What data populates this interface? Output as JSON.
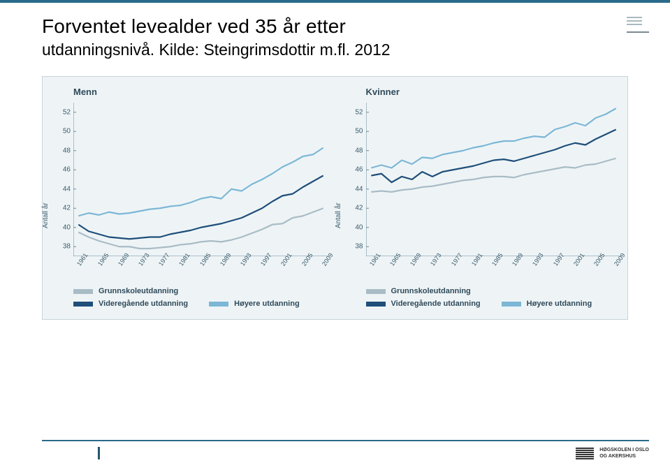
{
  "page": {
    "title_line1": "Forventet levealder ved 35 år etter",
    "title_line2_strong": "utdanningsnivå.",
    "title_line2_rest": " Kilde: Steingrimsdottir m.fl. 2012",
    "background": "#ffffff",
    "rule_color": "#2a6a8a"
  },
  "chart_common": {
    "type": "line",
    "background_color": "#eef4f6",
    "axis_color": "#6a8a9a",
    "grid": false,
    "ylim": [
      37,
      53
    ],
    "yticks": [
      38,
      40,
      42,
      44,
      46,
      48,
      50,
      52
    ],
    "xlim": [
      1960,
      2010
    ],
    "xticks": [
      1961,
      1965,
      1969,
      1973,
      1977,
      1981,
      1985,
      1989,
      1993,
      1997,
      2001,
      2005,
      2009
    ],
    "y_axis_label": "Antall år",
    "line_width": 2.2,
    "label_fontsize": 10,
    "title_fontsize": 13,
    "series_colors": {
      "grunnskole": "#a9bcc6",
      "videregaende": "#1f4e79",
      "hoyere": "#7db7d6"
    },
    "legend": [
      {
        "key": "grunnskole",
        "label": "Grunnskoleutdanning",
        "row": 0
      },
      {
        "key": "videregaende",
        "label": "Videregående utdanning",
        "row": 1
      },
      {
        "key": "hoyere",
        "label": "Høyere utdanning",
        "row": 1
      }
    ]
  },
  "panels": [
    {
      "title": "Menn",
      "series": {
        "grunnskole": [
          [
            1961,
            39.5
          ],
          [
            1963,
            39.0
          ],
          [
            1965,
            38.6
          ],
          [
            1967,
            38.3
          ],
          [
            1969,
            38.0
          ],
          [
            1971,
            38.0
          ],
          [
            1973,
            37.8
          ],
          [
            1975,
            37.8
          ],
          [
            1977,
            37.9
          ],
          [
            1979,
            38.0
          ],
          [
            1981,
            38.2
          ],
          [
            1983,
            38.3
          ],
          [
            1985,
            38.5
          ],
          [
            1987,
            38.6
          ],
          [
            1989,
            38.5
          ],
          [
            1991,
            38.7
          ],
          [
            1993,
            39.0
          ],
          [
            1995,
            39.4
          ],
          [
            1997,
            39.8
          ],
          [
            1999,
            40.3
          ],
          [
            2001,
            40.4
          ],
          [
            2003,
            41.0
          ],
          [
            2005,
            41.2
          ],
          [
            2007,
            41.6
          ],
          [
            2009,
            42.0
          ]
        ],
        "videregaende": [
          [
            1961,
            40.3
          ],
          [
            1963,
            39.6
          ],
          [
            1965,
            39.3
          ],
          [
            1967,
            39.0
          ],
          [
            1969,
            38.9
          ],
          [
            1971,
            38.8
          ],
          [
            1973,
            38.9
          ],
          [
            1975,
            39.0
          ],
          [
            1977,
            39.0
          ],
          [
            1979,
            39.3
          ],
          [
            1981,
            39.5
          ],
          [
            1983,
            39.7
          ],
          [
            1985,
            40.0
          ],
          [
            1987,
            40.2
          ],
          [
            1989,
            40.4
          ],
          [
            1991,
            40.7
          ],
          [
            1993,
            41.0
          ],
          [
            1995,
            41.5
          ],
          [
            1997,
            42.0
          ],
          [
            1999,
            42.7
          ],
          [
            2001,
            43.3
          ],
          [
            2003,
            43.5
          ],
          [
            2005,
            44.2
          ],
          [
            2007,
            44.8
          ],
          [
            2009,
            45.4
          ]
        ],
        "hoyere": [
          [
            1961,
            41.2
          ],
          [
            1963,
            41.5
          ],
          [
            1965,
            41.3
          ],
          [
            1967,
            41.6
          ],
          [
            1969,
            41.4
          ],
          [
            1971,
            41.5
          ],
          [
            1973,
            41.7
          ],
          [
            1975,
            41.9
          ],
          [
            1977,
            42.0
          ],
          [
            1979,
            42.2
          ],
          [
            1981,
            42.3
          ],
          [
            1983,
            42.6
          ],
          [
            1985,
            43.0
          ],
          [
            1987,
            43.2
          ],
          [
            1989,
            43.0
          ],
          [
            1991,
            44.0
          ],
          [
            1993,
            43.8
          ],
          [
            1995,
            44.5
          ],
          [
            1997,
            45.0
          ],
          [
            1999,
            45.6
          ],
          [
            2001,
            46.3
          ],
          [
            2003,
            46.8
          ],
          [
            2005,
            47.4
          ],
          [
            2007,
            47.6
          ],
          [
            2009,
            48.3
          ]
        ]
      }
    },
    {
      "title": "Kvinner",
      "series": {
        "grunnskole": [
          [
            1961,
            43.7
          ],
          [
            1963,
            43.8
          ],
          [
            1965,
            43.7
          ],
          [
            1967,
            43.9
          ],
          [
            1969,
            44.0
          ],
          [
            1971,
            44.2
          ],
          [
            1973,
            44.3
          ],
          [
            1975,
            44.5
          ],
          [
            1977,
            44.7
          ],
          [
            1979,
            44.9
          ],
          [
            1981,
            45.0
          ],
          [
            1983,
            45.2
          ],
          [
            1985,
            45.3
          ],
          [
            1987,
            45.3
          ],
          [
            1989,
            45.2
          ],
          [
            1991,
            45.5
          ],
          [
            1993,
            45.7
          ],
          [
            1995,
            45.9
          ],
          [
            1997,
            46.1
          ],
          [
            1999,
            46.3
          ],
          [
            2001,
            46.2
          ],
          [
            2003,
            46.5
          ],
          [
            2005,
            46.6
          ],
          [
            2007,
            46.9
          ],
          [
            2009,
            47.2
          ]
        ],
        "videregaende": [
          [
            1961,
            45.4
          ],
          [
            1963,
            45.6
          ],
          [
            1965,
            44.7
          ],
          [
            1967,
            45.3
          ],
          [
            1969,
            45.0
          ],
          [
            1971,
            45.8
          ],
          [
            1973,
            45.3
          ],
          [
            1975,
            45.8
          ],
          [
            1977,
            46.0
          ],
          [
            1979,
            46.2
          ],
          [
            1981,
            46.4
          ],
          [
            1983,
            46.7
          ],
          [
            1985,
            47.0
          ],
          [
            1987,
            47.1
          ],
          [
            1989,
            46.9
          ],
          [
            1991,
            47.2
          ],
          [
            1993,
            47.5
          ],
          [
            1995,
            47.8
          ],
          [
            1997,
            48.1
          ],
          [
            1999,
            48.5
          ],
          [
            2001,
            48.8
          ],
          [
            2003,
            48.6
          ],
          [
            2005,
            49.2
          ],
          [
            2007,
            49.7
          ],
          [
            2009,
            50.2
          ]
        ],
        "hoyere": [
          [
            1961,
            46.2
          ],
          [
            1963,
            46.5
          ],
          [
            1965,
            46.2
          ],
          [
            1967,
            47.0
          ],
          [
            1969,
            46.6
          ],
          [
            1971,
            47.3
          ],
          [
            1973,
            47.2
          ],
          [
            1975,
            47.6
          ],
          [
            1977,
            47.8
          ],
          [
            1979,
            48.0
          ],
          [
            1981,
            48.3
          ],
          [
            1983,
            48.5
          ],
          [
            1985,
            48.8
          ],
          [
            1987,
            49.0
          ],
          [
            1989,
            49.0
          ],
          [
            1991,
            49.3
          ],
          [
            1993,
            49.5
          ],
          [
            1995,
            49.4
          ],
          [
            1997,
            50.2
          ],
          [
            1999,
            50.5
          ],
          [
            2001,
            50.9
          ],
          [
            2003,
            50.6
          ],
          [
            2005,
            51.4
          ],
          [
            2007,
            51.8
          ],
          [
            2009,
            52.4
          ]
        ]
      }
    }
  ],
  "footer": {
    "institution_line1": "HØGSKOLEN I OSLO",
    "institution_line2": "OG AKERSHUS"
  }
}
